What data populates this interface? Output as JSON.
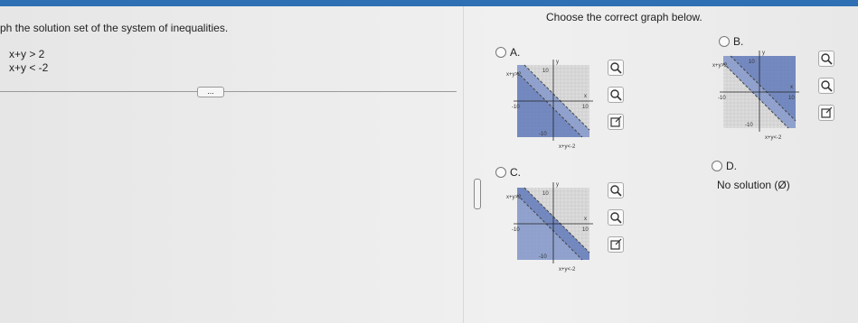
{
  "left_panel": {
    "instruction": "ph the solution set of the system of inequalities.",
    "inequalities": [
      "x+y > 2",
      "x+y < -2"
    ],
    "more_button": "..."
  },
  "right_panel": {
    "prompt": "Choose the correct graph below.",
    "options": [
      {
        "letter": "A.",
        "graph": {
          "top_label": "x+y>2",
          "bottom_label": "x+y<-2",
          "axis_max": "10",
          "axis_min": "-10",
          "x_axis": "x",
          "y_axis": "y"
        }
      },
      {
        "letter": "B.",
        "graph": {
          "top_label": "x+y>2",
          "bottom_label": "x+y<-2",
          "axis_max": "10",
          "axis_min": "-10",
          "x_axis": "x",
          "y_axis": "y"
        }
      },
      {
        "letter": "C.",
        "graph": {
          "top_label": "x+y>2",
          "bottom_label": "x+y<-2",
          "axis_max": "10",
          "axis_min": "-10",
          "x_axis": "x",
          "y_axis": "y"
        }
      },
      {
        "letter": "D.",
        "text": "No solution (Ø)"
      }
    ]
  }
}
